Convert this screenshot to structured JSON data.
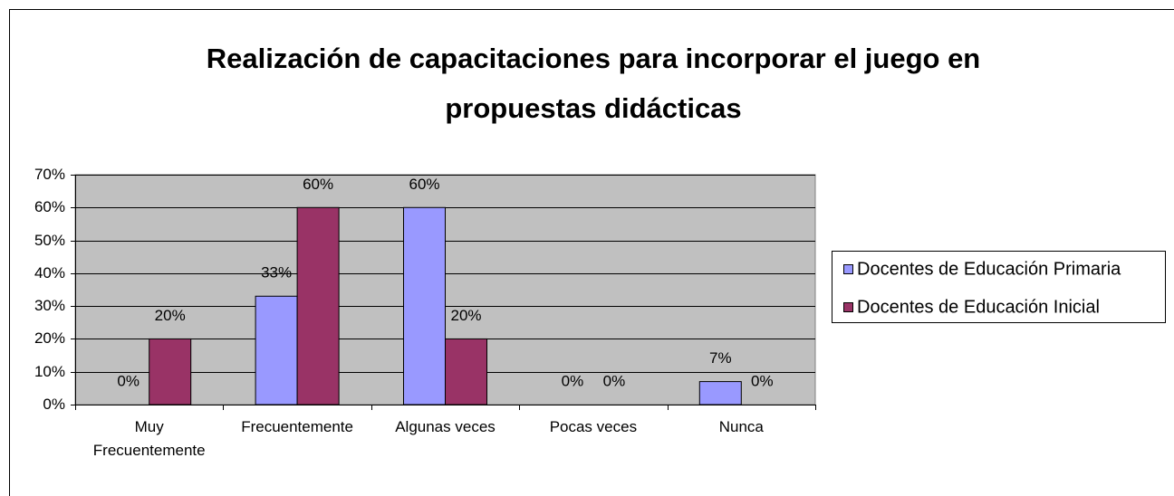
{
  "chart_data": {
    "type": "bar",
    "title": "Realización de capacitaciones para incorporar el juego en propuestas didácticas",
    "categories": [
      "Muy Frecuentemente",
      "Frecuentemente",
      "Algunas veces",
      "Pocas veces",
      "Nunca"
    ],
    "series": [
      {
        "name": "Docentes de Educación Primaria",
        "color": "#9999ff",
        "values": [
          0,
          33,
          60,
          0,
          7
        ],
        "value_labels": [
          "0%",
          "33%",
          "60%",
          "0%",
          "7%"
        ]
      },
      {
        "name": "Docentes de Educación Inicial",
        "color": "#993366",
        "values": [
          20,
          60,
          20,
          0,
          0
        ],
        "value_labels": [
          "20%",
          "60%",
          "20%",
          "0%",
          "0%"
        ]
      }
    ],
    "ylim": [
      0,
      70
    ],
    "yticks": [
      {
        "value": 0,
        "label": "0%"
      },
      {
        "value": 10,
        "label": "10%"
      },
      {
        "value": 20,
        "label": "20%"
      },
      {
        "value": 30,
        "label": "30%"
      },
      {
        "value": 40,
        "label": "40%"
      },
      {
        "value": 50,
        "label": "50%"
      },
      {
        "value": 60,
        "label": "60%"
      },
      {
        "value": 70,
        "label": "70%"
      }
    ],
    "grid": true,
    "legend": "right",
    "plot_background": "#c0c0c0"
  }
}
